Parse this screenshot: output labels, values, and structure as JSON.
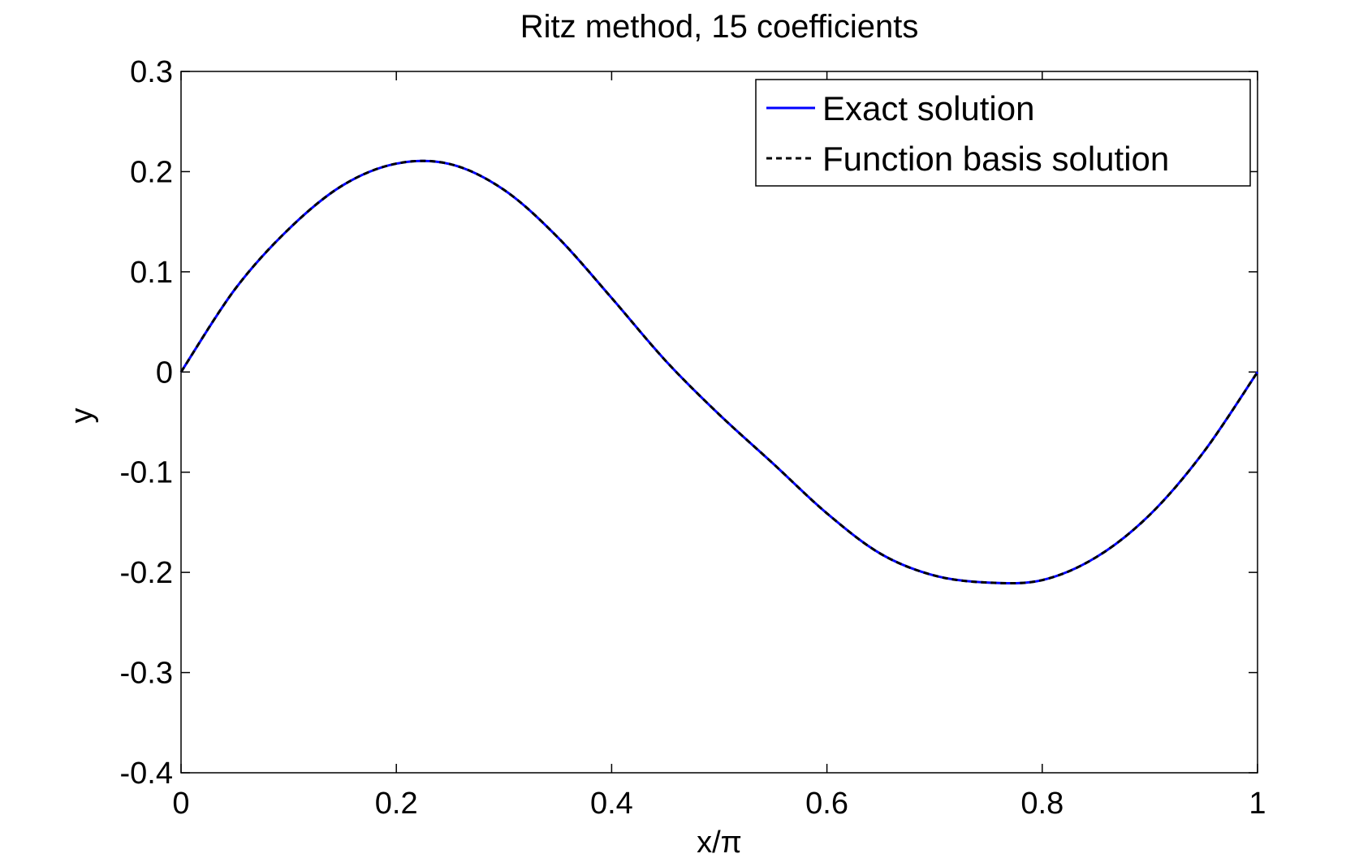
{
  "chart_data": {
    "type": "line",
    "title": "Ritz method, 15 coefficients",
    "xlabel": "x/π",
    "ylabel": "y",
    "xlim": [
      0,
      1
    ],
    "ylim": [
      -0.4,
      0.3
    ],
    "xticks": [
      "0",
      "0.2",
      "0.4",
      "0.6",
      "0.8",
      "1"
    ],
    "yticks": [
      "0.3",
      "0.2",
      "0.1",
      "0",
      "-0.1",
      "-0.2",
      "-0.3",
      "-0.4"
    ],
    "grid": false,
    "legend_position": "top-right",
    "x": [
      0,
      0.05,
      0.1,
      0.15,
      0.2,
      0.25,
      0.3,
      0.35,
      0.4,
      0.45,
      0.5,
      0.55,
      0.6,
      0.65,
      0.7,
      0.75,
      0.8,
      0.85,
      0.9,
      0.95,
      1
    ],
    "series": [
      {
        "name": "Exact solution",
        "color": "#0000ff",
        "style": "solid",
        "values": [
          0,
          0.0825,
          0.1426,
          0.1862,
          0.208,
          0.2075,
          0.1818,
          0.1344,
          0.0739,
          0.0114,
          -0.0425,
          -0.0914,
          -0.1411,
          -0.1815,
          -0.2032,
          -0.2102,
          -0.2077,
          -0.1849,
          -0.1424,
          -0.0798,
          0
        ]
      },
      {
        "name": "Function basis solution",
        "color": "#000000",
        "style": "dashed",
        "values": [
          0,
          0.0825,
          0.1426,
          0.1862,
          0.208,
          0.2075,
          0.1818,
          0.1344,
          0.0739,
          0.0114,
          -0.0425,
          -0.0914,
          -0.1411,
          -0.1815,
          -0.2032,
          -0.2102,
          -0.2077,
          -0.1849,
          -0.1424,
          -0.0798,
          0
        ]
      }
    ]
  }
}
